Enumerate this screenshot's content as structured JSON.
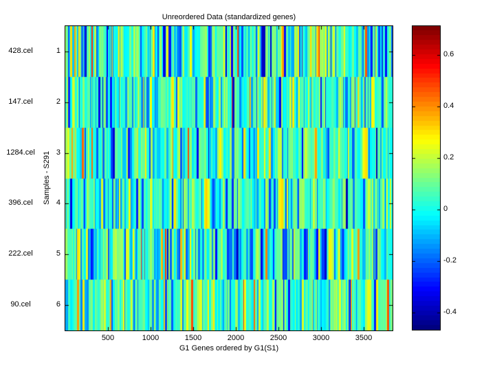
{
  "figure": {
    "background_color": "#ffffff",
    "text_color": "#000000"
  },
  "chart_data": {
    "type": "heatmap",
    "title": "Unreordered Data (standardized genes)",
    "xlabel": "G1 Genes ordered by G1(S1)",
    "ylabel": "Samples - S291",
    "x_range": [
      1,
      3840
    ],
    "x_ticks": [
      500,
      1000,
      1500,
      2000,
      2500,
      3000,
      3500
    ],
    "rows": [
      {
        "index": 1,
        "sample": "428.cel"
      },
      {
        "index": 2,
        "sample": "147.cel"
      },
      {
        "index": 3,
        "sample": "1284.cel"
      },
      {
        "index": 4,
        "sample": "396.cel"
      },
      {
        "index": 5,
        "sample": "222.cel"
      },
      {
        "index": 6,
        "sample": "90.cel"
      }
    ],
    "colormap": "jet",
    "value_range": [
      -0.467,
      0.712
    ],
    "colorbar_ticks": [
      0.6,
      0.4,
      0.2,
      0,
      -0.2,
      -0.4
    ],
    "grid": false,
    "legend_position": "colorbar-right",
    "pattern": {
      "note": "Per-gene values are below screenshot resolution; vertical stripes are regenerated statistically (mostly cyan near 0, green ~0.1, yellow ~0.25, sparse orange/red >0.35, blue ~-0.16, dark blue ~-0.3).",
      "n_cols": 476,
      "components": [
        {
          "name": "cyan",
          "base": 0.02,
          "spread": 0.07
        },
        {
          "name": "green",
          "base": 0.13,
          "spread": 0.06
        },
        {
          "name": "yellow",
          "base": 0.25,
          "spread": 0.06
        },
        {
          "name": "orange",
          "base": 0.4,
          "spread": 0.12
        },
        {
          "name": "blue",
          "base": -0.16,
          "spread": 0.08
        },
        {
          "name": "darkblue",
          "base": -0.3,
          "spread": 0.1
        }
      ],
      "row_seeds": [
        1428,
        2147,
        31284,
        4396,
        5222,
        690
      ],
      "row_weights": [
        [
          0.4,
          0.21,
          0.13,
          0.035,
          0.175,
          0.05
        ],
        [
          0.45,
          0.2,
          0.1,
          0.02,
          0.19,
          0.04
        ],
        [
          0.49,
          0.23,
          0.08,
          0.015,
          0.155,
          0.03
        ],
        [
          0.48,
          0.22,
          0.08,
          0.01,
          0.18,
          0.03
        ],
        [
          0.41,
          0.15,
          0.08,
          0.01,
          0.26,
          0.09
        ],
        [
          0.45,
          0.23,
          0.1,
          0.02,
          0.17,
          0.03
        ]
      ]
    }
  }
}
